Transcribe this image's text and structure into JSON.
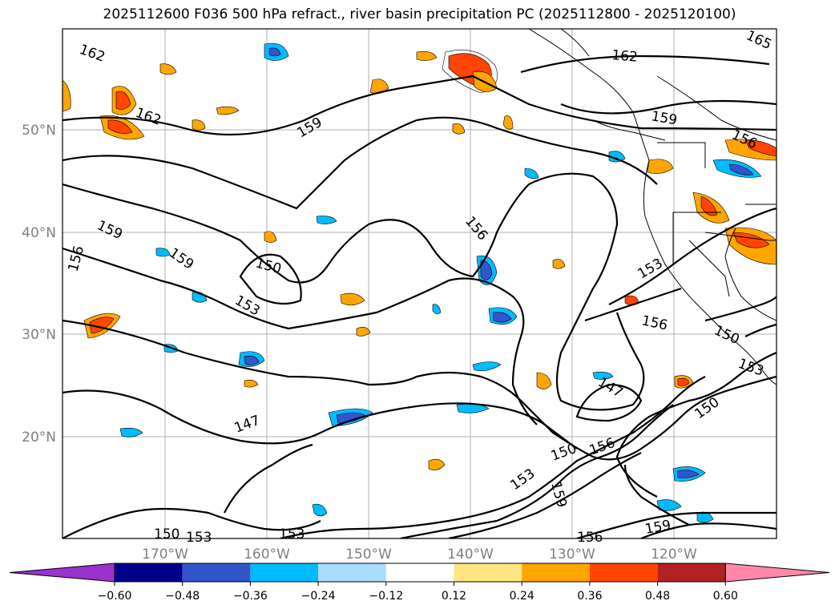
{
  "title": "2025112600 F036 500 hPa refract., river basin precipitation PC (2025112800 - 2025120100)",
  "longitude_labels": [
    "170°W",
    "160°W",
    "150°W",
    "140°W",
    "130°W",
    "120°W"
  ],
  "latitude_labels": [
    "50°N",
    "40°N",
    "30°N",
    "20°N"
  ],
  "contour_labels": [
    "162",
    "162",
    "162",
    "165",
    "159",
    "159",
    "159",
    "159",
    "156",
    "156",
    "156",
    "156",
    "156",
    "153",
    "153",
    "153",
    "153",
    "153",
    "153",
    "150",
    "150",
    "150",
    "150",
    "150",
    "147",
    "147",
    "159",
    "156",
    "159"
  ],
  "colorbar": {
    "colors": [
      "#9933cc",
      "#00008b",
      "#3355cc",
      "#00bbff",
      "#aaddff",
      "#ffffff",
      "#ffe680",
      "#ffa500",
      "#ff4500",
      "#b22222",
      "#ff88aa"
    ],
    "tick_labels": [
      "−0.60",
      "−0.48",
      "−0.36",
      "−0.24",
      "−0.12",
      "0.12",
      "0.24",
      "0.36",
      "0.48",
      "0.60"
    ]
  }
}
